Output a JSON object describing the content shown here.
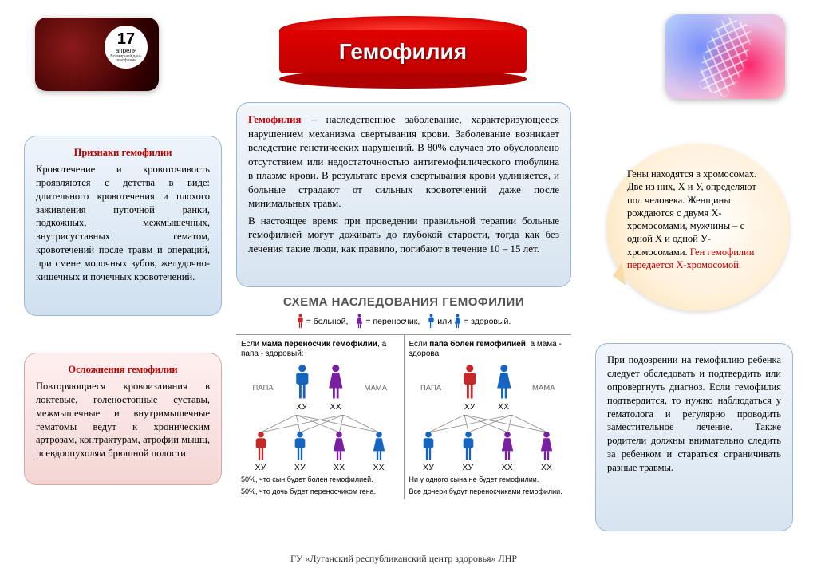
{
  "title": "Гемофилия",
  "date_badge": {
    "day": "17",
    "month": "апреля",
    "sub": "Всемирный день\nгемофилии"
  },
  "signs": {
    "heading": "Признаки гемофилии",
    "text": "Кровотечение и кровоточивость проявляются с детства в виде: длительного кровотечения и плохого заживления пупочной ранки, подкожных, межмышечных, внутрисуставных гематом, кровотечений после травм и операций, при смене молочных зубов, желудочно-кишечных и почечных кровотечений."
  },
  "complications": {
    "heading": "Осложнения гемофилии",
    "text": "Повторяющиеся кровоизлияния в локтевые, голеностопные суставы, межмышечные и внутримышечные гематомы ведут к хроническим артрозам, контрактурам, атрофии мышц, псевдоопухолям брюшной полости."
  },
  "definition": {
    "term": "Гемофилия",
    "body": " – наследственное заболевание, характеризующееся нарушением механизма свертывания крови. Заболевание возникает вследствие генетических нарушений. В 80% случаев это обусловлено отсутствием или недостаточностью антигемофилического глобулина в плазме крови. В результате время свертывания крови удлиняется, и больные страдают от сильных кровотечений даже после минимальных травм.",
    "body2": "В настоящее время при проведении правильной терапии больные гемофилией могут доживать до глубокой старости, тогда как без лечения такие люди, как правило, погибают в течение 10 – 15 лет."
  },
  "genes": {
    "text": "Гены находятся в хромосомах. Две из них, Х и У, определяют пол человека. Женщины рождаются с двумя Х-хромосомами, мужчины – с одной Х и одной У-хромосомами.",
    "note": "Ген гемофилии передается Х-хромосомой."
  },
  "advice": {
    "text": "При подозрении на гемофилию ребенка следует обследовать и подтвердить или опровергнуть диагноз. Если гемофилия подтвердится, то нужно наблюдаться у гематолога и регулярно проводить заместительное лечение. Также родители должны внимательно следить за ребенком и стараться ограничивать разные травмы."
  },
  "scheme": {
    "title": "СХЕМА НАСЛЕДОВАНИЯ ГЕМОФИЛИИ",
    "legend": {
      "sick": "= больной,",
      "carrier": "= переносчик,",
      "or": "или",
      "healthy": "= здоровый."
    },
    "colors": {
      "sick": "#c62828",
      "carrier": "#7b1fa2",
      "healthy": "#1565c0",
      "line": "#888888"
    },
    "panel_left": {
      "caption_pre": "Если ",
      "caption_bold": "мама переносчик гемофилии",
      "caption_post": ", а папа - здоровый:",
      "papa_label": "ПАПА",
      "mama_label": "МАМА",
      "papa_geno": "ХУ",
      "mama_geno": "ХХ",
      "children": [
        {
          "color": "sick",
          "sex": "m",
          "geno": "ХУ"
        },
        {
          "color": "healthy",
          "sex": "m",
          "geno": "ХУ"
        },
        {
          "color": "carrier",
          "sex": "f",
          "geno": "ХХ"
        },
        {
          "color": "healthy",
          "sex": "f",
          "geno": "ХХ"
        }
      ],
      "outcome1": "50%, что сын будет болен гемофилией.",
      "outcome2": "50%, что дочь будет переносчиком гена."
    },
    "panel_right": {
      "caption_pre": "Если ",
      "caption_bold": "папа болен гемофилией",
      "caption_post": ", а мама - здорова:",
      "papa_label": "ПАПА",
      "mama_label": "МАМА",
      "papa_geno": "ХУ",
      "mama_geno": "ХХ",
      "children": [
        {
          "color": "healthy",
          "sex": "m",
          "geno": "ХУ"
        },
        {
          "color": "healthy",
          "sex": "m",
          "geno": "ХУ"
        },
        {
          "color": "carrier",
          "sex": "f",
          "geno": "ХХ"
        },
        {
          "color": "carrier",
          "sex": "f",
          "geno": "ХХ"
        }
      ],
      "outcome1": "Ни у одного сына не будет гемофилии.",
      "outcome2": "Все дочери будут переносчиками гемофилии."
    }
  },
  "footer": "ГУ «Луганский республиканский центр здоровья» ЛНР"
}
